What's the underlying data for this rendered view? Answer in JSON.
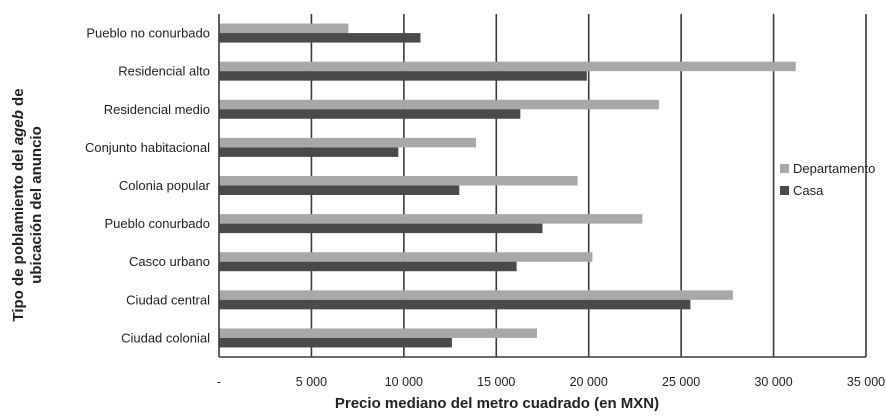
{
  "chart_data": {
    "type": "bar",
    "orientation": "horizontal",
    "title": "",
    "xlabel": "Precio mediano del metro cuadrado (en MXN)",
    "ylabel": {
      "prefix": "Tipo de poblamiento del ",
      "italic": "ageb",
      "suffix": " de",
      "line2": "ubicación del anuncio"
    },
    "xlim": [
      0,
      35000
    ],
    "x_ticks": [
      0,
      5000,
      10000,
      15000,
      20000,
      25000,
      30000,
      35000
    ],
    "x_tick_labels": [
      "-",
      "5 000",
      "10 000",
      "15 000",
      "20 000",
      "25 000",
      "30 000",
      "35 000"
    ],
    "grid": true,
    "legend_position": "right",
    "categories": [
      "Pueblo no conurbado",
      "Residencial alto",
      "Residencial medio",
      "Conjunto habitacional",
      "Colonia popular",
      "Pueblo conurbado",
      "Casco urbano",
      "Ciudad central",
      "Ciudad colonial"
    ],
    "series": [
      {
        "name": "Departamento",
        "color": "#a8a8a8",
        "values": [
          7000,
          31200,
          23800,
          13900,
          19400,
          22900,
          20200,
          27800,
          17200
        ]
      },
      {
        "name": "Casa",
        "color": "#4a4a4a",
        "values": [
          10900,
          19900,
          16300,
          9700,
          13000,
          17500,
          16100,
          25500,
          12600
        ]
      }
    ]
  }
}
